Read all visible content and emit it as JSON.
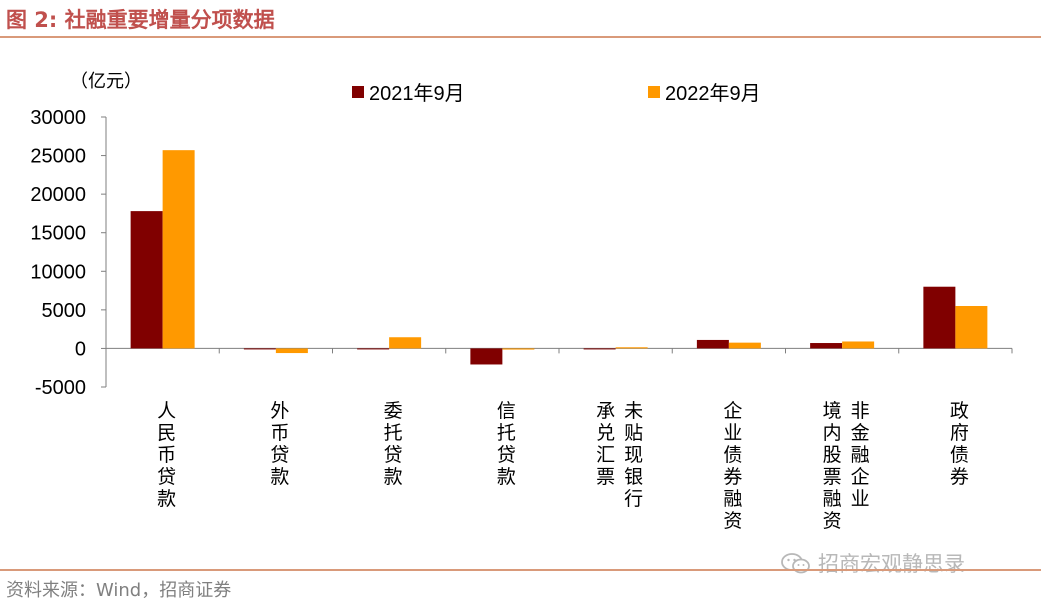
{
  "header": {
    "title": "图 2:  社融重要增量分项数据"
  },
  "footer": {
    "source": "资料来源：Wind，招商证券",
    "watermark": "招商宏观静思录"
  },
  "colors": {
    "series_2021": "#800000",
    "series_2022": "#ff9900",
    "accent": "#c0504d"
  },
  "chart_data": {
    "type": "bar",
    "ylabel": "（亿元）",
    "ylim": [
      -5000,
      30000
    ],
    "yticks": [
      "30000",
      "25000",
      "20000",
      "15000",
      "10000",
      "5000",
      "0",
      "-5000"
    ],
    "legend_position": "top",
    "categories": [
      [
        "人民币贷款"
      ],
      [
        "外币贷款"
      ],
      [
        "委托贷款"
      ],
      [
        "信托贷款"
      ],
      [
        "未贴现银行",
        "承兑汇票"
      ],
      [
        "企业债券融资"
      ],
      [
        "非金融企业",
        "境内股票融资"
      ],
      [
        "政府债券"
      ]
    ],
    "series": [
      {
        "name": "2021年9月",
        "values": [
          17800,
          -60,
          -100,
          -2080,
          -50,
          1100,
          700,
          8000
        ]
      },
      {
        "name": "2022年9月",
        "values": [
          25700,
          -600,
          1450,
          -150,
          150,
          750,
          900,
          5500
        ]
      }
    ]
  }
}
